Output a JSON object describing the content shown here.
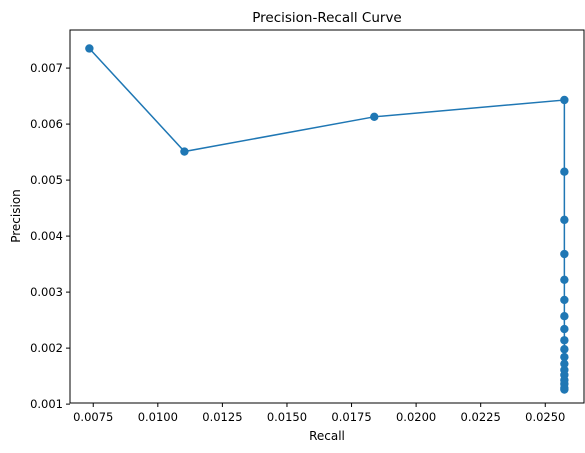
{
  "chart_data": {
    "type": "line",
    "title": "Precision-Recall Curve",
    "xlabel": "Recall",
    "ylabel": "Precision",
    "xlim": [
      0.0066,
      0.0265
    ],
    "ylim": [
      0.00102,
      0.00768
    ],
    "x_ticks": [
      "0.0075",
      "0.0100",
      "0.0125",
      "0.0150",
      "0.0175",
      "0.0200",
      "0.0225",
      "0.0250"
    ],
    "y_ticks": [
      "0.001",
      "0.002",
      "0.003",
      "0.004",
      "0.005",
      "0.006",
      "0.007"
    ],
    "grid": false,
    "color": "#1f77b4",
    "marker": "circle",
    "series": [
      {
        "x": [
          0.00735,
          0.01103,
          0.01838,
          0.02574,
          0.02574,
          0.02574,
          0.02574,
          0.02574,
          0.02574,
          0.02574,
          0.02574,
          0.02574,
          0.02574,
          0.02574,
          0.02574,
          0.02574,
          0.02574,
          0.02574,
          0.02574,
          0.02574,
          0.02574
        ],
        "y": [
          0.00735,
          0.00551,
          0.00613,
          0.00643,
          0.00515,
          0.00429,
          0.00368,
          0.00322,
          0.00286,
          0.00257,
          0.00234,
          0.00214,
          0.00198,
          0.00184,
          0.00172,
          0.00161,
          0.00152,
          0.00143,
          0.00136,
          0.00129,
          0.00126
        ]
      }
    ]
  }
}
